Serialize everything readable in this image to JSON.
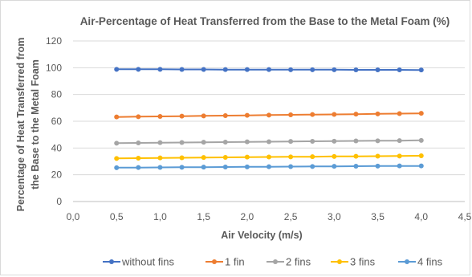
{
  "chart_data": {
    "type": "line",
    "title": "Air-Percentage of Heat Transferred from the Base to the Metal Foam (%)",
    "xlabel": "Air Velocity (m/s)",
    "ylabel_line1": "Percentage of Heat Transferred from",
    "ylabel_line2": "the Base to the Metal Foam",
    "xlim": [
      0,
      4.5
    ],
    "ylim": [
      0,
      120
    ],
    "x_ticks": [
      "0,0",
      "0,5",
      "1,0",
      "1,5",
      "2,0",
      "2,5",
      "3,0",
      "3,5",
      "4,0",
      "4,5"
    ],
    "y_ticks": [
      "0",
      "20",
      "40",
      "60",
      "80",
      "100",
      "120"
    ],
    "grid": true,
    "legend_position": "bottom",
    "x": [
      0.5,
      0.75,
      1.0,
      1.25,
      1.5,
      1.75,
      2.0,
      2.25,
      2.5,
      2.75,
      3.0,
      3.25,
      3.5,
      3.75,
      4.0
    ],
    "series": [
      {
        "name": "without fins",
        "color": "#4472c4",
        "values": [
          98.8,
          98.8,
          98.8,
          98.7,
          98.7,
          98.6,
          98.6,
          98.6,
          98.5,
          98.5,
          98.5,
          98.4,
          98.4,
          98.4,
          98.3
        ]
      },
      {
        "name": "1 fin",
        "color": "#ed7d31",
        "values": [
          63.2,
          63.4,
          63.6,
          63.8,
          64.0,
          64.2,
          64.4,
          64.6,
          64.8,
          65.0,
          65.1,
          65.3,
          65.5,
          65.7,
          65.9
        ]
      },
      {
        "name": "2 fins",
        "color": "#a5a5a5",
        "values": [
          43.6,
          43.8,
          44.0,
          44.1,
          44.3,
          44.4,
          44.6,
          44.7,
          44.9,
          45.0,
          45.1,
          45.3,
          45.4,
          45.5,
          45.7
        ]
      },
      {
        "name": "3 fins",
        "color": "#ffc000",
        "values": [
          32.2,
          32.4,
          32.6,
          32.7,
          32.9,
          33.0,
          33.2,
          33.3,
          33.4,
          33.5,
          33.7,
          33.8,
          33.9,
          34.0,
          34.2
        ]
      },
      {
        "name": "4 fins",
        "color": "#5b9bd5",
        "values": [
          25.3,
          25.4,
          25.5,
          25.6,
          25.7,
          25.8,
          25.9,
          26.0,
          26.1,
          26.2,
          26.3,
          26.4,
          26.5,
          26.6,
          26.6
        ]
      }
    ]
  }
}
